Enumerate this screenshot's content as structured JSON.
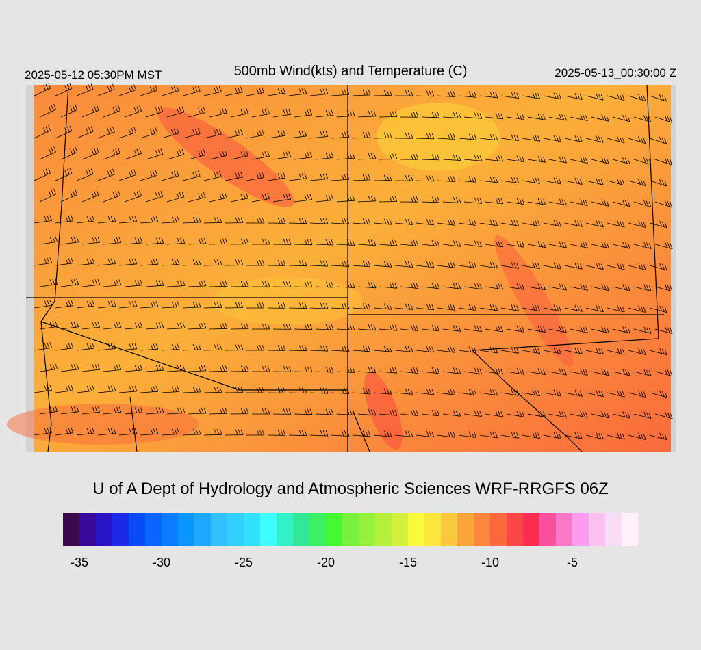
{
  "header": {
    "left": "2025-05-12 05:30PM MST",
    "title": "500mb Wind(kts) and Temperature (C)",
    "right": "2025-05-13_00:30:00 Z"
  },
  "credit": "U of A Dept of Hydrology and Atmospheric Sciences WRF-RRGFS 06Z",
  "colorbar": {
    "bins": [
      -36,
      -35,
      -34,
      -33,
      -32,
      -31,
      -30,
      -29,
      -28,
      -27,
      -26,
      -25,
      -24,
      -23,
      -22,
      -21,
      -20,
      -19,
      -18,
      -17,
      -16,
      -15,
      -14,
      -13,
      -12,
      -11,
      -10,
      -9,
      -8,
      -7,
      -6,
      -5,
      -4,
      -3,
      -2,
      -1
    ],
    "colors": [
      "#3a0a4a",
      "#3a0a9a",
      "#2a14c8",
      "#1a2ae6",
      "#0a4af8",
      "#0a64ff",
      "#0a7cff",
      "#0a96ff",
      "#1ea8ff",
      "#32c0ff",
      "#32d0ff",
      "#32e0ff",
      "#3cfcff",
      "#32f0c8",
      "#32e896",
      "#3cf064",
      "#46f832",
      "#78f03c",
      "#96f03c",
      "#b4f03c",
      "#d2f03c",
      "#fafa3c",
      "#fae63c",
      "#fac83c",
      "#faa53c",
      "#fa873c",
      "#fa693c",
      "#fa4646",
      "#fa2d50",
      "#fa50a0",
      "#fa78c8",
      "#fa9cf0",
      "#fac0f0",
      "#fadcf8",
      "#fff0fa"
    ],
    "ticks": [
      -35,
      -30,
      -25,
      -20,
      -15,
      -10,
      -5
    ]
  }
}
